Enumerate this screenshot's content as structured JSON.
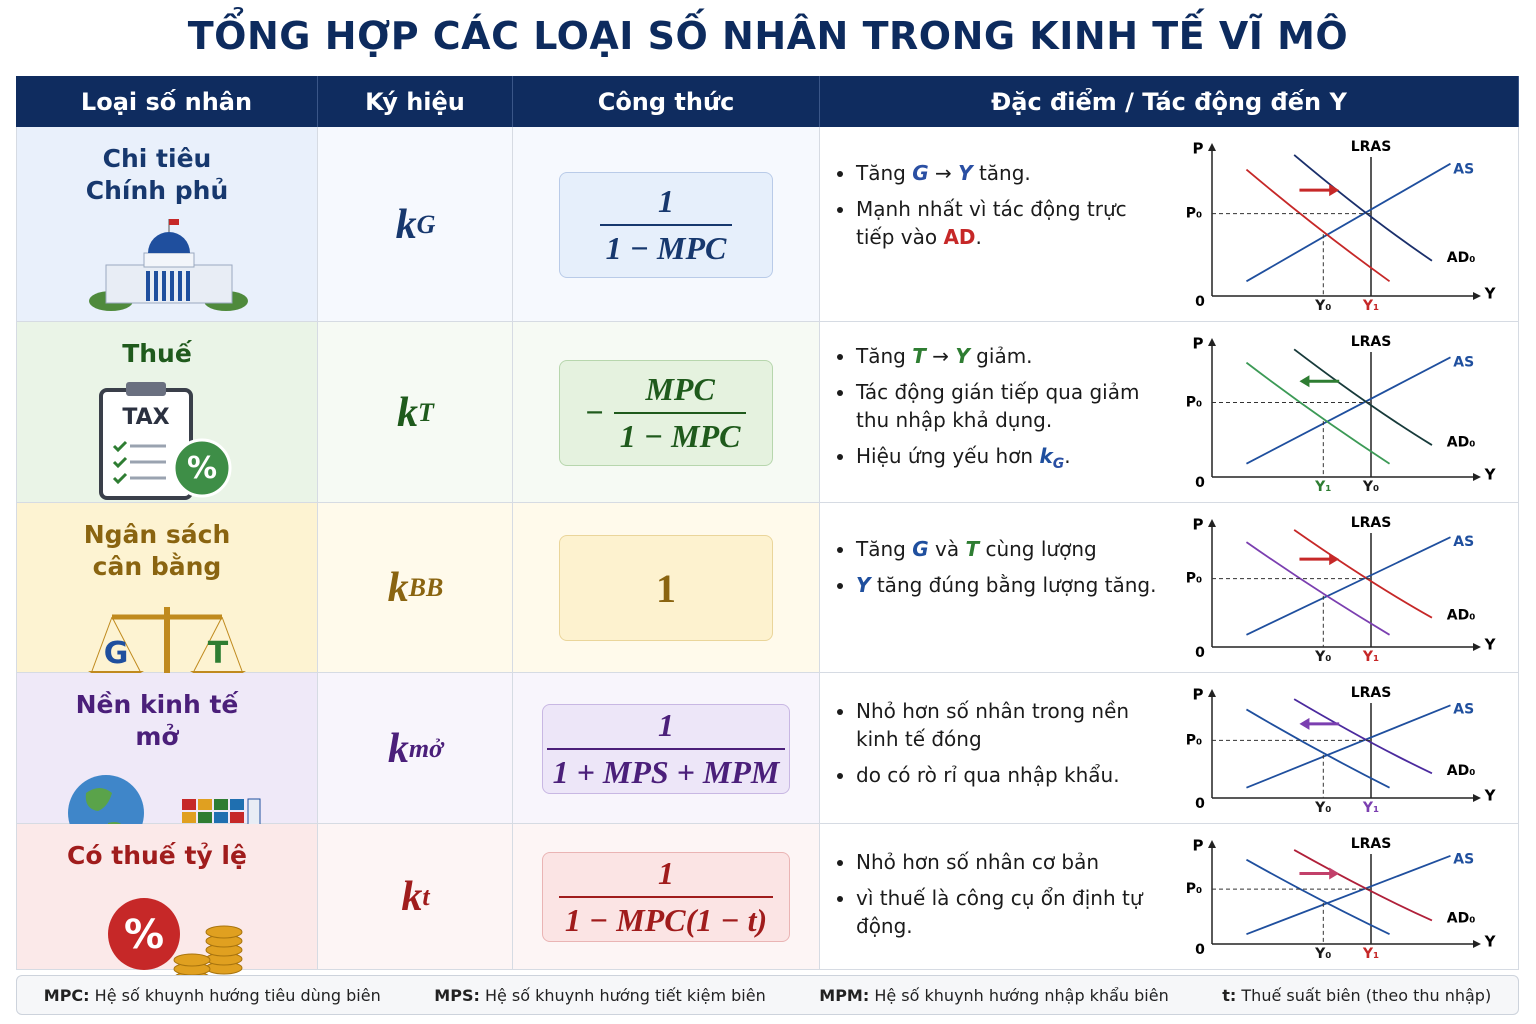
{
  "title": "TỔNG HỢP CÁC LOẠI SỐ NHÂN TRONG KINH TẾ VĨ MÔ",
  "table": {
    "headers": [
      "Loại số nhân",
      "Ký hiệu",
      "Công thức",
      "Đặc điểm / Tác động đến Y"
    ],
    "rows": [
      {
        "name": [
          "Chi tiêu",
          "Chính phủ"
        ],
        "icon_text": [],
        "symbol": {
          "base": "k",
          "sub": "G"
        },
        "formula": {
          "numerator": "1",
          "denominator": "1 − MPC"
        },
        "effects": [
          [
            "Tăng ",
            "G",
            " → ",
            "Y",
            " tăng."
          ],
          [
            "Mạnh nhất vì tác động trực tiếp vào ",
            "AD",
            "."
          ]
        ],
        "graph": {
          "p": "P",
          "lras": "LRAS",
          "as": "AS",
          "ad": "AD₀",
          "origin": "0",
          "y": "Y",
          "p0": "P₀",
          "y_labels": [
            "Y₀",
            "Y₁"
          ]
        }
      },
      {
        "name": [
          "Thuế"
        ],
        "icon_text": [
          "TAX",
          "%"
        ],
        "symbol": {
          "base": "k",
          "sub": "T"
        },
        "formula": {
          "sign": "−",
          "numerator": "MPC",
          "denominator": "1 − MPC"
        },
        "effects": [
          [
            "Tăng ",
            "T",
            " → ",
            "Y",
            " giảm."
          ],
          [
            "Tác động gián tiếp qua giảm thu nhập khả dụng."
          ],
          [
            "Hiệu ứng yếu hơn ",
            "k",
            "G",
            "."
          ]
        ],
        "graph": {
          "p": "P",
          "lras": "LRAS",
          "as": "AS",
          "ad": "AD₀",
          "origin": "0",
          "y": "Y",
          "p0": "P₀",
          "y_labels": [
            "Y₁",
            "Y₀"
          ]
        }
      },
      {
        "name": [
          "Ngân sách",
          "cân bằng"
        ],
        "icon_text": [
          "G",
          "T"
        ],
        "symbol": {
          "base": "k",
          "sub": "BB"
        },
        "formula": {
          "value": "1"
        },
        "effects": [
          [
            "Tăng ",
            "G",
            " và ",
            "T",
            " cùng lượng"
          ],
          [
            "Y",
            " tăng đúng bằng lượng tăng."
          ]
        ],
        "graph": {
          "p": "P",
          "lras": "LRAS",
          "as": "AS",
          "ad": "AD₀",
          "origin": "0",
          "y": "Y",
          "p0": "P₀",
          "y_labels": [
            "Y₀",
            "Y₁"
          ]
        }
      },
      {
        "name": [
          "Nền kinh tế",
          "mở"
        ],
        "icon_text": [],
        "symbol": {
          "base": "k",
          "sub": "mở"
        },
        "formula": {
          "numerator": "1",
          "denominator": "1 + MPS + MPM"
        },
        "effects": [
          [
            "Nhỏ hơn số nhân trong nền kinh tế đóng"
          ],
          [
            "do có rò rỉ qua nhập khẩu."
          ]
        ],
        "graph": {
          "p": "P",
          "lras": "LRAS",
          "as": "AS",
          "ad": "AD₀",
          "origin": "0",
          "y": "Y",
          "p0": "P₀",
          "y_labels": [
            "Y₀",
            "Y₁"
          ]
        }
      },
      {
        "name": [
          "Có thuế tỷ lệ"
        ],
        "icon_text": [
          "%"
        ],
        "symbol": {
          "base": "k",
          "sub": "t"
        },
        "formula": {
          "numerator": "1",
          "denominator": "1 − MPC(1 − t)"
        },
        "effects": [
          [
            "Nhỏ hơn số nhân cơ bản"
          ],
          [
            "vì thuế là công cụ ổn định tự động."
          ]
        ],
        "graph": {
          "p": "P",
          "lras": "LRAS",
          "as": "AS",
          "ad": "AD₀",
          "origin": "0",
          "y": "Y",
          "p0": "P₀",
          "y_labels": [
            "Y₀",
            "Y₁"
          ]
        }
      }
    ]
  },
  "footer": [
    {
      "term": "MPC:",
      "desc": "Hệ số khuynh hướng tiêu dùng biên"
    },
    {
      "term": "MPS:",
      "desc": "Hệ số khuynh hướng tiết kiệm biên"
    },
    {
      "term": "MPM:",
      "desc": "Hệ số khuynh hướng nhập khẩu biên"
    },
    {
      "term": "t:",
      "desc": "Thuế suất biên (theo thu nhập)"
    }
  ]
}
